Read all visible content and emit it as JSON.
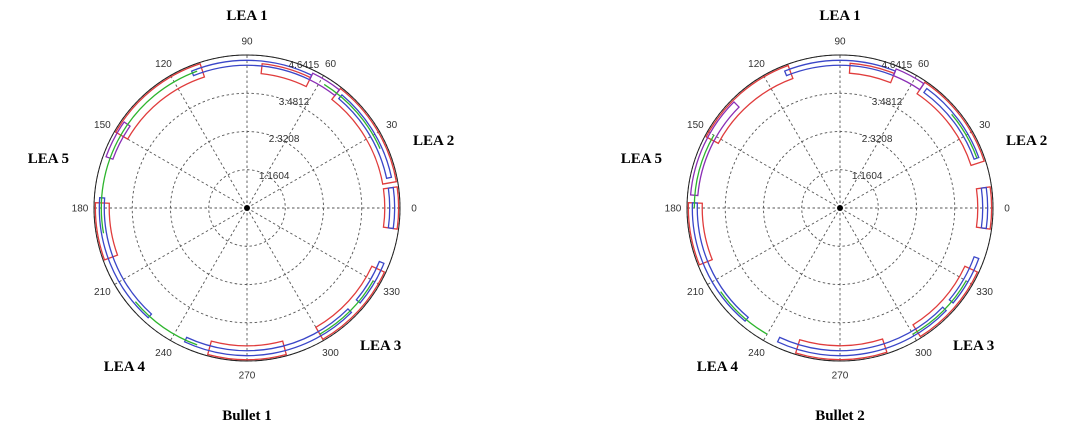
{
  "chart_data": [
    {
      "type": "polar",
      "title": "",
      "caption": "Bullet 1",
      "angle_ticks": [
        "0",
        "30",
        "60",
        "90",
        "120",
        "150",
        "180",
        "210",
        "240",
        "270",
        "300",
        "330"
      ],
      "radial_ticks": [
        "1.1604",
        "2.3208",
        "3.4812",
        "4.6415"
      ],
      "r_max": 4.6415,
      "grid": true,
      "region_labels": [
        {
          "label": "LEA 1",
          "angle": 90
        },
        {
          "label": "LEA 2",
          "angle": 20
        },
        {
          "label": "LEA 3",
          "angle": 320
        },
        {
          "label": "LEA 4",
          "angle": 235
        },
        {
          "label": "LEA 5",
          "angle": 160
        }
      ],
      "series": [
        {
          "color": "#e03c3c",
          "segments": [
            [
              -8,
              8,
              4.18,
              4.6
            ],
            [
              10,
              52,
              4.18,
              4.6
            ],
            [
              64,
              84,
              4.1,
              4.4
            ],
            [
              108,
              150,
              4.18,
              4.6
            ],
            [
              178,
              200,
              4.18,
              4.6
            ],
            [
              255,
              285,
              4.18,
              4.6
            ],
            [
              300,
              335,
              4.18,
              4.6
            ]
          ]
        },
        {
          "color": "#3a46c8",
          "segments": [
            [
              -8,
              8,
              4.33,
              4.48
            ],
            [
              12,
              50,
              4.33,
              4.48
            ],
            [
              64,
              112,
              4.33,
              4.48
            ],
            [
              176,
              228,
              4.33,
              4.48
            ],
            [
              245,
              315,
              4.33,
              4.48
            ],
            [
              320,
              338,
              4.33,
              4.48
            ]
          ]
        },
        {
          "color": "#8a2db5",
          "segments": [
            [
              52,
              64,
              4.33,
              4.55
            ],
            [
              145,
              160,
              4.33,
              4.55
            ]
          ]
        },
        {
          "color": "#2db52d",
          "segments": [
            [
              24,
              58,
              4.42,
              4.42
            ],
            [
              110,
              190,
              4.42,
              4.42
            ],
            [
              220,
              250,
              4.42,
              4.42
            ],
            [
              300,
              330,
              4.42,
              4.42
            ]
          ]
        }
      ]
    },
    {
      "type": "polar",
      "title": "",
      "caption": "Bullet 2",
      "angle_ticks": [
        "0",
        "30",
        "60",
        "90",
        "120",
        "150",
        "180",
        "210",
        "240",
        "270",
        "300",
        "330"
      ],
      "radial_ticks": [
        "1.1604",
        "2.3208",
        "3.4812",
        "4.6415"
      ],
      "r_max": 4.6415,
      "grid": true,
      "region_labels": [
        {
          "label": "LEA 1",
          "angle": 90
        },
        {
          "label": "LEA 2",
          "angle": 20
        },
        {
          "label": "LEA 3",
          "angle": 320
        },
        {
          "label": "LEA 4",
          "angle": 235
        },
        {
          "label": "LEA 5",
          "angle": 160
        }
      ],
      "series": [
        {
          "color": "#e03c3c",
          "segments": [
            [
              -8,
              8,
              4.18,
              4.6
            ],
            [
              18,
              56,
              4.18,
              4.6
            ],
            [
              68,
              86,
              4.1,
              4.4
            ],
            [
              110,
              152,
              4.18,
              4.6
            ],
            [
              178,
              202,
              4.18,
              4.6
            ],
            [
              253,
              288,
              4.18,
              4.6
            ],
            [
              302,
              335,
              4.18,
              4.6
            ]
          ]
        },
        {
          "color": "#3a46c8",
          "segments": [
            [
              -8,
              8,
              4.33,
              4.48
            ],
            [
              20,
              54,
              4.33,
              4.48
            ],
            [
              68,
              112,
              4.33,
              4.48
            ],
            [
              178,
              230,
              4.33,
              4.48
            ],
            [
              245,
              316,
              4.33,
              4.48
            ],
            [
              320,
              340,
              4.33,
              4.48
            ]
          ]
        },
        {
          "color": "#8a2db5",
          "segments": [
            [
              56,
              68,
              4.33,
              4.55
            ],
            [
              135,
              175,
              4.33,
              4.55
            ]
          ]
        },
        {
          "color": "#2db52d",
          "segments": [
            [
              20,
              40,
              4.42,
              4.42
            ],
            [
              150,
              180,
              4.42,
              4.42
            ],
            [
              215,
              240,
              4.42,
              4.42
            ],
            [
              300,
              330,
              4.42,
              4.42
            ]
          ]
        }
      ]
    }
  ]
}
